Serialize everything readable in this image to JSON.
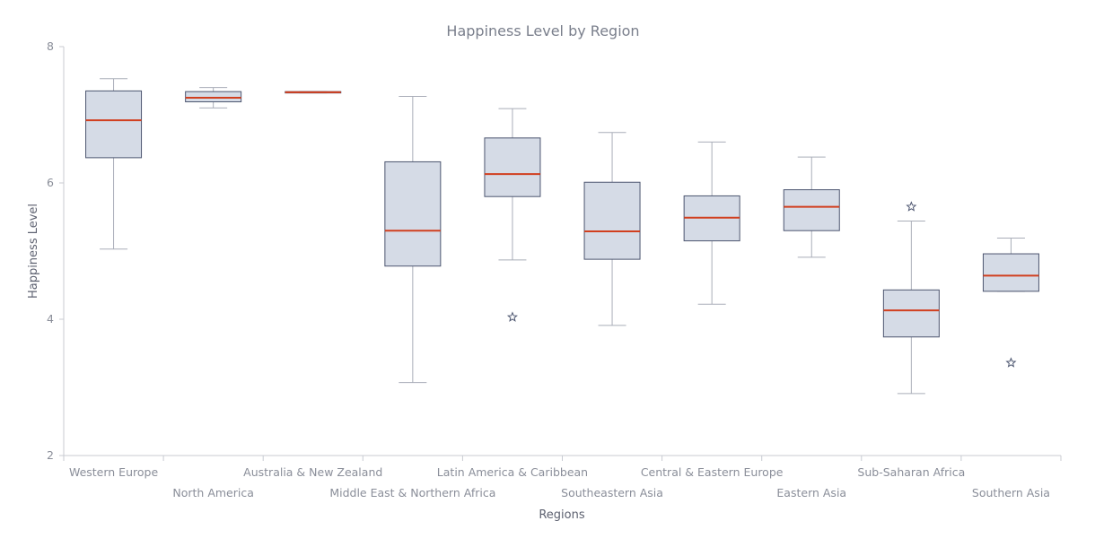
{
  "chart_data": {
    "type": "box",
    "title": "Happiness Level by Region",
    "xlabel": "Regions",
    "ylabel": "Happiness Level",
    "ylim": [
      2,
      8
    ],
    "yticks": [
      2,
      4,
      6,
      8
    ],
    "grid": false,
    "legend": "none",
    "categories": [
      "Western Europe",
      "North America",
      "Australia & New Zealand",
      "Middle East & Northern Africa",
      "Latin America & Caribbean",
      "Southeastern Asia",
      "Central & Eastern Europe",
      "Eastern Asia",
      "Sub-Saharan Africa",
      "Southern Asia"
    ],
    "boxes": [
      {
        "region": "Western Europe",
        "low": 5.03,
        "q1": 6.37,
        "median": 6.92,
        "q3": 7.35,
        "high": 7.53,
        "outliers": []
      },
      {
        "region": "North America",
        "low": 7.1,
        "q1": 7.19,
        "median": 7.25,
        "q3": 7.34,
        "high": 7.4,
        "outliers": []
      },
      {
        "region": "Australia & New Zealand",
        "low": 7.32,
        "q1": 7.32,
        "median": 7.33,
        "q3": 7.34,
        "high": 7.34,
        "outliers": []
      },
      {
        "region": "Middle East & Northern Africa",
        "low": 3.07,
        "q1": 4.78,
        "median": 5.3,
        "q3": 6.31,
        "high": 7.27,
        "outliers": []
      },
      {
        "region": "Latin America & Caribbean",
        "low": 4.87,
        "q1": 5.8,
        "median": 6.13,
        "q3": 6.66,
        "high": 7.09,
        "outliers": [
          4.03
        ]
      },
      {
        "region": "Southeastern Asia",
        "low": 3.91,
        "q1": 4.88,
        "median": 5.29,
        "q3": 6.01,
        "high": 6.74,
        "outliers": []
      },
      {
        "region": "Central & Eastern Europe",
        "low": 4.22,
        "q1": 5.15,
        "median": 5.49,
        "q3": 5.81,
        "high": 6.6,
        "outliers": []
      },
      {
        "region": "Eastern Asia",
        "low": 4.91,
        "q1": 5.3,
        "median": 5.65,
        "q3": 5.9,
        "high": 6.38,
        "outliers": []
      },
      {
        "region": "Sub-Saharan Africa",
        "low": 2.91,
        "q1": 3.74,
        "median": 4.13,
        "q3": 4.43,
        "high": 5.44,
        "outliers": [
          5.65
        ]
      },
      {
        "region": "Southern Asia",
        "low": 4.41,
        "q1": 4.41,
        "median": 4.64,
        "q3": 4.96,
        "high": 5.19,
        "outliers": [
          3.36
        ]
      }
    ],
    "colors": {
      "box_fill": "#d5dbe6",
      "box_stroke": "#4d5670",
      "median": "#d13f1f",
      "whisker": "#a9adb8",
      "axis": "#c8cbd2",
      "outlier": "#4d5670"
    }
  }
}
